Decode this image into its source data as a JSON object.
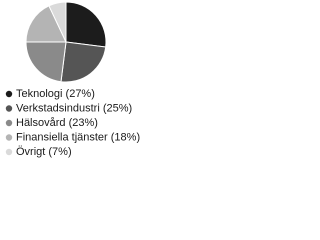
{
  "chart_data": {
    "type": "pie",
    "categories": [
      "Teknologi (27%)",
      "Verkstadsindustri (25%)",
      "Hälsovård (23%)",
      "Finansiella tjänster (18%)",
      "Övrigt (7%)"
    ],
    "values": [
      27,
      25,
      23,
      18,
      7
    ],
    "colors": [
      "#1c1c1c",
      "#555555",
      "#8a8a8a",
      "#b4b4b4",
      "#dadada"
    ]
  }
}
